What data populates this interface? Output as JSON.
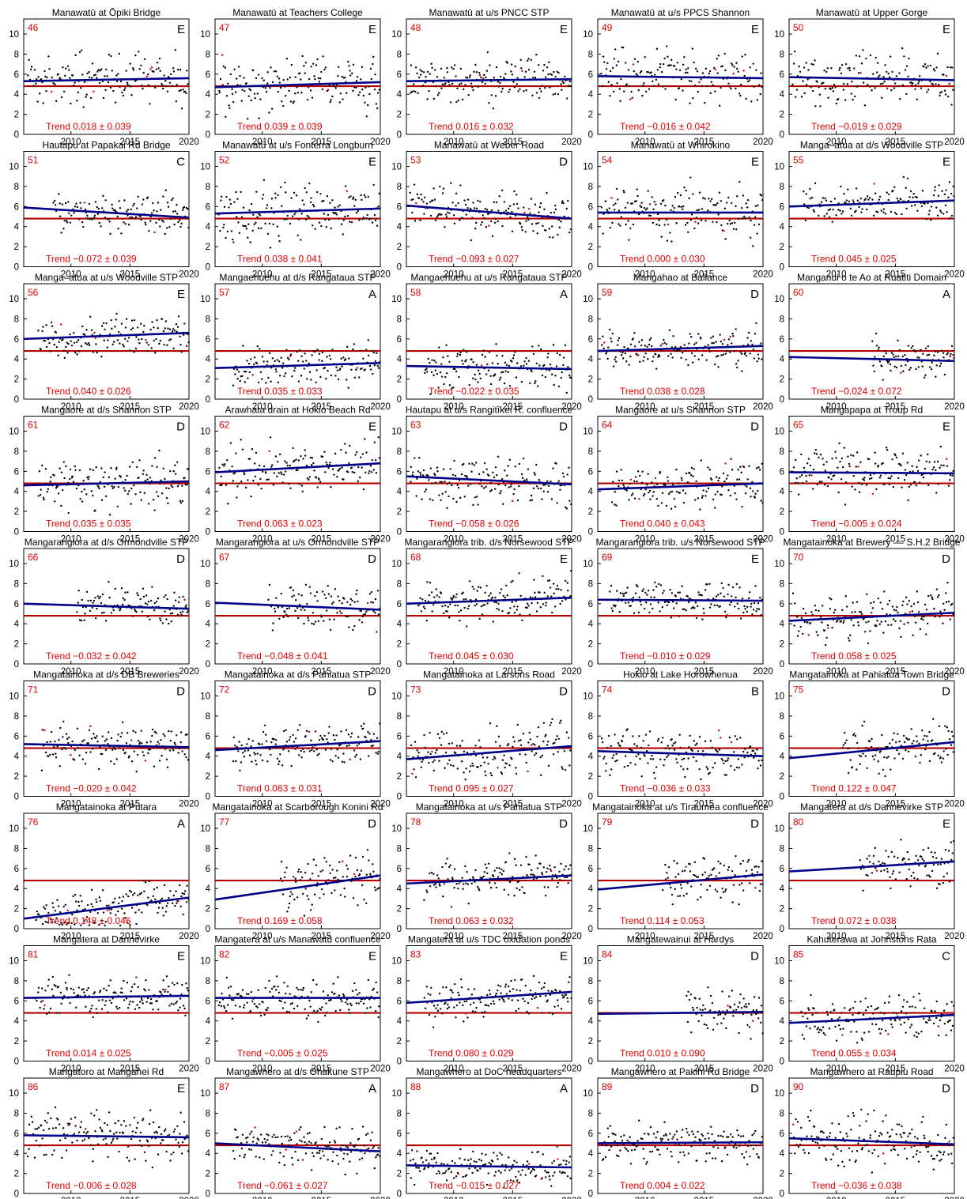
{
  "colors": {
    "points": "#000000",
    "outlier_points": "#cc0000",
    "trend_line": "#00008b",
    "threshold_line": "#b30000",
    "annotation": "#e00000"
  },
  "chart_data": {
    "type": "scatter",
    "layout": "small-multiples grid, 5 columns x 9 rows",
    "xlim": [
      2006,
      2020
    ],
    "ylim": [
      0,
      11.5
    ],
    "xticks": [
      2010,
      2015,
      2020
    ],
    "yticks": [
      0,
      2,
      4,
      6,
      8,
      10
    ],
    "threshold": 4.8,
    "grid": false,
    "panels": [
      {
        "id": "46",
        "title": "Manawatū at Ōpiki Bridge",
        "grade": "E",
        "trend_text": "Trend 0.018 ± 0.039",
        "start": 2006.3,
        "line": [
          5.3,
          5.6
        ],
        "mean": 5.6,
        "spread": 1.5
      },
      {
        "id": "47",
        "title": "Manawatū at Teachers College",
        "grade": "E",
        "trend_text": "Trend 0.039 ± 0.039",
        "start": 2006.3,
        "line": [
          4.7,
          5.2
        ],
        "mean": 5.0,
        "spread": 1.7
      },
      {
        "id": "48",
        "title": "Manawatū at u/s PNCC STP",
        "grade": "E",
        "trend_text": "Trend 0.016 ± 0.032",
        "start": 2006.3,
        "line": [
          5.3,
          5.5
        ],
        "mean": 5.7,
        "spread": 1.4
      },
      {
        "id": "49",
        "title": "Manawatū at u/s PPCS Shannon",
        "grade": "E",
        "trend_text": "Trend −0.016 ± 0.042",
        "start": 2006.3,
        "line": [
          5.8,
          5.6
        ],
        "mean": 5.6,
        "spread": 1.6
      },
      {
        "id": "50",
        "title": "Manawatū at Upper Gorge",
        "grade": "E",
        "trend_text": "Trend −0.019 ± 0.029",
        "start": 2006.3,
        "line": [
          5.7,
          5.4
        ],
        "mean": 5.6,
        "spread": 1.6
      },
      {
        "id": "51",
        "title": "Hautapu at Papakai Rd Bridge",
        "grade": "C",
        "trend_text": "Trend −0.072 ± 0.039",
        "start": 2008.5,
        "line": [
          5.9,
          4.9
        ],
        "mean": 5.2,
        "spread": 1.2
      },
      {
        "id": "52",
        "title": "Manawatū at u/s Fonterra Longburn",
        "grade": "E",
        "trend_text": "Trend 0.038 ± 0.041",
        "start": 2006.3,
        "line": [
          5.3,
          5.8
        ],
        "mean": 5.5,
        "spread": 1.7
      },
      {
        "id": "53",
        "title": "Manawatū at Weber Road",
        "grade": "D",
        "trend_text": "Trend −0.093 ± 0.027",
        "start": 2006.3,
        "line": [
          6.1,
          4.8
        ],
        "mean": 5.4,
        "spread": 1.4
      },
      {
        "id": "54",
        "title": "Manawatū at Whirokino",
        "grade": "E",
        "trend_text": "Trend 0.000 ± 0.030",
        "start": 2006.3,
        "line": [
          5.4,
          5.4
        ],
        "mean": 5.6,
        "spread": 1.6
      },
      {
        "id": "55",
        "title": "Manga–atua at d/s Woodville STP",
        "grade": "E",
        "trend_text": "Trend 0.045 ± 0.025",
        "start": 2007.2,
        "line": [
          6.0,
          6.6
        ],
        "mean": 6.4,
        "spread": 1.1
      },
      {
        "id": "56",
        "title": "Manga–atua at u/s Woodville STP",
        "grade": "E",
        "trend_text": "Trend 0.040 ± 0.026",
        "start": 2007.2,
        "line": [
          6.0,
          6.6
        ],
        "mean": 6.3,
        "spread": 1.1
      },
      {
        "id": "57",
        "title": "Mangaehuehu at d/s Rangataua STP",
        "grade": "A",
        "trend_text": "Trend 0.035 ± 0.033",
        "start": 2007.5,
        "line": [
          3.1,
          3.6
        ],
        "mean": 3.4,
        "spread": 1.2
      },
      {
        "id": "58",
        "title": "Mangaehuehu at u/s Rangataua STP",
        "grade": "A",
        "trend_text": "Trend −0.022 ± 0.035",
        "start": 2007.5,
        "line": [
          3.3,
          3.0
        ],
        "mean": 3.2,
        "spread": 1.3
      },
      {
        "id": "59",
        "title": "Mangahao at Ballance",
        "grade": "D",
        "trend_text": "Trend 0.038 ± 0.028",
        "start": 2006.3,
        "line": [
          4.8,
          5.3
        ],
        "mean": 5.1,
        "spread": 1.2
      },
      {
        "id": "60",
        "title": "Manganui o te Ao at Ruatiti Domain",
        "grade": "A",
        "trend_text": "Trend −0.024 ± 0.072",
        "start": 2013.0,
        "line": [
          4.2,
          3.8
        ],
        "mean": 3.9,
        "spread": 1.2
      },
      {
        "id": "61",
        "title": "Mangaore at d/s Shannon STP",
        "grade": "D",
        "trend_text": "Trend 0.035 ± 0.035",
        "start": 2007.2,
        "line": [
          4.6,
          5.0
        ],
        "mean": 4.9,
        "spread": 1.5
      },
      {
        "id": "62",
        "title": "Arawhata drain at Hokio Beach Rd",
        "grade": "E",
        "trend_text": "Trend 0.063 ± 0.023",
        "start": 2006.3,
        "line": [
          5.9,
          6.8
        ],
        "mean": 6.4,
        "spread": 1.6
      },
      {
        "id": "63",
        "title": "Hautapu at u/s Rangitīkei R. confluence",
        "grade": "D",
        "trend_text": "Trend −0.058 ± 0.026",
        "start": 2006.3,
        "line": [
          5.5,
          4.7
        ],
        "mean": 5.2,
        "spread": 1.5
      },
      {
        "id": "64",
        "title": "Mangaore at u/s Shannon STP",
        "grade": "D",
        "trend_text": "Trend 0.040 ± 0.043",
        "start": 2007.2,
        "line": [
          4.2,
          4.8
        ],
        "mean": 4.5,
        "spread": 1.4
      },
      {
        "id": "65",
        "title": "Mangapapa at Troup Rd",
        "grade": "E",
        "trend_text": "Trend −0.005 ± 0.024",
        "start": 2006.3,
        "line": [
          5.9,
          5.8
        ],
        "mean": 5.9,
        "spread": 1.4
      },
      {
        "id": "66",
        "title": "Mangarangiora at d/s Ormondville STP",
        "grade": "D",
        "trend_text": "Trend −0.032 ± 0.042",
        "start": 2010.5,
        "line": [
          6.0,
          5.5
        ],
        "mean": 5.6,
        "spread": 1.2
      },
      {
        "id": "67",
        "title": "Mangarangiora at u/s Ormondville STP",
        "grade": "D",
        "trend_text": "Trend −0.048 ± 0.041",
        "start": 2010.5,
        "line": [
          6.1,
          5.4
        ],
        "mean": 5.5,
        "spread": 1.2
      },
      {
        "id": "68",
        "title": "Mangarangiora trib. d/s Norsewood STP",
        "grade": "E",
        "trend_text": "Trend 0.045 ± 0.030",
        "start": 2007.0,
        "line": [
          6.0,
          6.6
        ],
        "mean": 6.3,
        "spread": 1.3
      },
      {
        "id": "69",
        "title": "Mangarangiora trib. u/s Norsewood STP",
        "grade": "E",
        "trend_text": "Trend −0.010 ± 0.029",
        "start": 2007.0,
        "line": [
          6.4,
          6.3
        ],
        "mean": 6.3,
        "spread": 1.0
      },
      {
        "id": "70",
        "title": "Mangatainoka at Brewery –– S.H.2 Bridge",
        "grade": "D",
        "trend_text": "Trend 0.058 ± 0.025",
        "start": 2006.3,
        "line": [
          4.3,
          5.1
        ],
        "mean": 4.8,
        "spread": 1.5
      },
      {
        "id": "71",
        "title": "Mangatainoka at d/s DB Breweries",
        "grade": "D",
        "trend_text": "Trend −0.020 ± 0.042",
        "start": 2007.5,
        "line": [
          5.2,
          4.9
        ],
        "mean": 5.0,
        "spread": 1.3
      },
      {
        "id": "72",
        "title": "Mangatainoka at d/s Pahiatua STP",
        "grade": "D",
        "trend_text": "Trend 0.063 ± 0.031",
        "start": 2007.5,
        "line": [
          4.6,
          5.5
        ],
        "mean": 5.1,
        "spread": 1.2
      },
      {
        "id": "73",
        "title": "Mangatainoka at Larsons Road",
        "grade": "D",
        "trend_text": "Trend 0.095 ± 0.027",
        "start": 2006.3,
        "line": [
          3.7,
          5.0
        ],
        "mean": 4.5,
        "spread": 1.6
      },
      {
        "id": "74",
        "title": "Hokio at Lake Horowhenua",
        "grade": "B",
        "trend_text": "Trend −0.036 ± 0.033",
        "start": 2006.3,
        "line": [
          4.5,
          4.0
        ],
        "mean": 4.2,
        "spread": 1.3
      },
      {
        "id": "75",
        "title": "Mangatainoka at Pahiatua Town Bridge",
        "grade": "D",
        "trend_text": "Trend 0.122 ± 0.047",
        "start": 2010.5,
        "line": [
          3.8,
          5.4
        ],
        "mean": 4.9,
        "spread": 1.4
      },
      {
        "id": "76",
        "title": "Mangatainoka at Putara",
        "grade": "A",
        "trend_text": "Trend 0.148 ± 0.046",
        "start": 2007.0,
        "line": [
          1.0,
          3.1
        ],
        "mean": 2.2,
        "spread": 1.3
      },
      {
        "id": "77",
        "title": "Mangatainoka at Scarborough Konini Rd",
        "grade": "D",
        "trend_text": "Trend 0.169 ± 0.058",
        "start": 2011.5,
        "line": [
          2.9,
          5.3
        ],
        "mean": 4.6,
        "spread": 1.5
      },
      {
        "id": "78",
        "title": "Mangatainoka at u/s Pahiatua STP",
        "grade": "D",
        "trend_text": "Trend 0.063 ± 0.032",
        "start": 2007.5,
        "line": [
          4.5,
          5.3
        ],
        "mean": 5.0,
        "spread": 1.2
      },
      {
        "id": "79",
        "title": "Mangatainoka at u/s Tiraumea confluence",
        "grade": "D",
        "trend_text": "Trend 0.114 ± 0.053",
        "start": 2011.5,
        "line": [
          3.9,
          5.4
        ],
        "mean": 4.9,
        "spread": 1.4
      },
      {
        "id": "80",
        "title": "Mangatera at d/s Dannevirke STP",
        "grade": "E",
        "trend_text": "Trend 0.072 ± 0.038",
        "start": 2012.0,
        "line": [
          5.7,
          6.7
        ],
        "mean": 6.3,
        "spread": 1.3
      },
      {
        "id": "81",
        "title": "Mangatera at Dannevirke",
        "grade": "E",
        "trend_text": "Trend 0.014 ± 0.025",
        "start": 2007.0,
        "line": [
          6.3,
          6.5
        ],
        "mean": 6.4,
        "spread": 1.1
      },
      {
        "id": "82",
        "title": "Mangatera at u/s Manawatū confluence",
        "grade": "E",
        "trend_text": "Trend −0.005 ± 0.025",
        "start": 2006.3,
        "line": [
          6.3,
          6.3
        ],
        "mean": 6.3,
        "spread": 1.1
      },
      {
        "id": "83",
        "title": "Mangatera at u/s TDC oxidation ponds",
        "grade": "E",
        "trend_text": "Trend 0.080 ± 0.029",
        "start": 2007.5,
        "line": [
          5.8,
          6.9
        ],
        "mean": 6.4,
        "spread": 1.2
      },
      {
        "id": "84",
        "title": "Mangatewainui at Hardys",
        "grade": "D",
        "trend_text": "Trend 0.010 ± 0.090",
        "start": 2013.5,
        "line": [
          4.7,
          4.9
        ],
        "mean": 4.8,
        "spread": 1.3
      },
      {
        "id": "85",
        "title": "Kahuterawa at Johnstons Rata",
        "grade": "C",
        "trend_text": "Trend 0.055 ± 0.034",
        "start": 2007.0,
        "line": [
          3.8,
          4.6
        ],
        "mean": 4.3,
        "spread": 1.5
      },
      {
        "id": "86",
        "title": "Mangatoro at Mangahei Rd",
        "grade": "E",
        "trend_text": "Trend −0.006 ± 0.028",
        "start": 2006.3,
        "line": [
          5.8,
          5.6
        ],
        "mean": 5.8,
        "spread": 1.4
      },
      {
        "id": "87",
        "title": "Mangawhero at d/s Ohakune STP",
        "grade": "A",
        "trend_text": "Trend −0.061 ± 0.027",
        "start": 2007.5,
        "line": [
          5.0,
          4.2
        ],
        "mean": 4.5,
        "spread": 1.3
      },
      {
        "id": "88",
        "title": "Mangawhero at DoC headquarters",
        "grade": "A",
        "trend_text": "Trend −0.015 ± 0.027",
        "start": 2006.3,
        "line": [
          2.8,
          2.6
        ],
        "mean": 2.7,
        "spread": 1.0
      },
      {
        "id": "89",
        "title": "Mangawhero at Pakihi Rd Bridge",
        "grade": "D",
        "trend_text": "Trend 0.004 ± 0.022",
        "start": 2006.3,
        "line": [
          5.0,
          5.1
        ],
        "mean": 5.1,
        "spread": 1.2
      },
      {
        "id": "90",
        "title": "Mangawhero at Raupiu Road",
        "grade": "D",
        "trend_text": "Trend −0.036 ± 0.038",
        "start": 2006.3,
        "line": [
          5.5,
          4.9
        ],
        "mean": 5.2,
        "spread": 1.6
      }
    ]
  }
}
